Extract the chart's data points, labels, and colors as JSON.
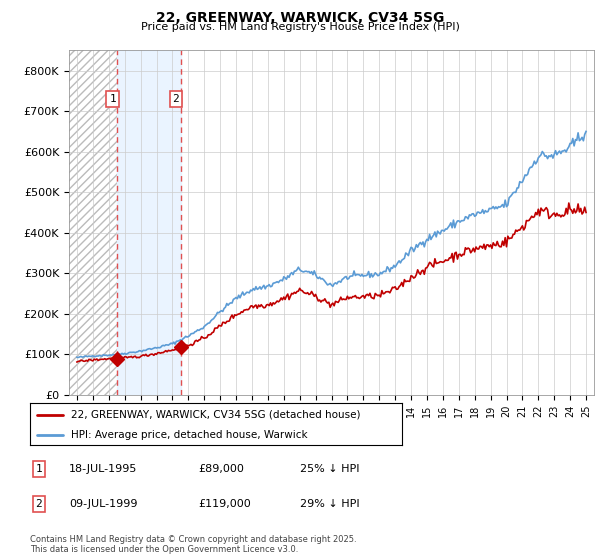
{
  "title": "22, GREENWAY, WARWICK, CV34 5SG",
  "subtitle": "Price paid vs. HM Land Registry's House Price Index (HPI)",
  "x_start_year": 1993,
  "x_end_year": 2025,
  "ylim": [
    0,
    850000
  ],
  "yticks": [
    0,
    100000,
    200000,
    300000,
    400000,
    500000,
    600000,
    700000,
    800000
  ],
  "ytick_labels": [
    "£0",
    "£100K",
    "£200K",
    "£300K",
    "£400K",
    "£500K",
    "£600K",
    "£700K",
    "£800K"
  ],
  "hpi_color": "#5b9bd5",
  "price_color": "#c00000",
  "sale1_date": 1995.54,
  "sale1_price": 89000,
  "sale1_label": "1",
  "sale2_date": 1999.52,
  "sale2_price": 119000,
  "sale2_label": "2",
  "vline_color": "#e05050",
  "shade_color": "#ddeeff",
  "hatch_color": "#bbbbbb",
  "legend1": "22, GREENWAY, WARWICK, CV34 5SG (detached house)",
  "legend2": "HPI: Average price, detached house, Warwick",
  "table_rows": [
    {
      "num": "1",
      "date": "18-JUL-1995",
      "price": "£89,000",
      "note": "25% ↓ HPI"
    },
    {
      "num": "2",
      "date": "09-JUL-1999",
      "price": "£119,000",
      "note": "29% ↓ HPI"
    }
  ],
  "footnote": "Contains HM Land Registry data © Crown copyright and database right 2025.\nThis data is licensed under the Open Government Licence v3.0.",
  "background_color": "#ffffff",
  "grid_color": "#cccccc"
}
